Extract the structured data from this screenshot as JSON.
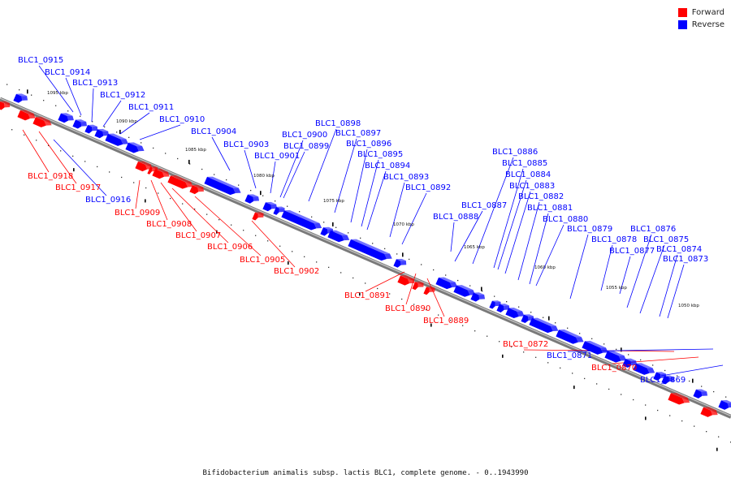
{
  "legend": {
    "forward_label": "Forward",
    "reverse_label": "Reverse",
    "forward_color": "#ff0000",
    "reverse_color": "#0000ff"
  },
  "caption": "Bifidobacterium animalis subsp. lactis BLC1, complete genome. - 0..1943990",
  "scale_labels": [
    "1095 kbp",
    "1090 kbp",
    "1085 kbp",
    "1080 kbp",
    "1075 kbp",
    "1070 kbp",
    "1065 kbp",
    "1060 kbp",
    "1055 kbp",
    "1050 kbp"
  ],
  "genes": [
    {
      "name": "BLC1_0915",
      "strand": "reverse"
    },
    {
      "name": "BLC1_0914",
      "strand": "reverse"
    },
    {
      "name": "BLC1_0913",
      "strand": "reverse"
    },
    {
      "name": "BLC1_0912",
      "strand": "reverse"
    },
    {
      "name": "BLC1_0911",
      "strand": "reverse"
    },
    {
      "name": "BLC1_0910",
      "strand": "reverse"
    },
    {
      "name": "BLC1_0904",
      "strand": "reverse"
    },
    {
      "name": "BLC1_0903",
      "strand": "reverse"
    },
    {
      "name": "BLC1_0901",
      "strand": "reverse"
    },
    {
      "name": "BLC1_0900",
      "strand": "reverse"
    },
    {
      "name": "BLC1_0899",
      "strand": "reverse"
    },
    {
      "name": "BLC1_0898",
      "strand": "reverse"
    },
    {
      "name": "BLC1_0897",
      "strand": "reverse"
    },
    {
      "name": "BLC1_0896",
      "strand": "reverse"
    },
    {
      "name": "BLC1_0895",
      "strand": "reverse"
    },
    {
      "name": "BLC1_0894",
      "strand": "reverse"
    },
    {
      "name": "BLC1_0893",
      "strand": "reverse"
    },
    {
      "name": "BLC1_0892",
      "strand": "reverse"
    },
    {
      "name": "BLC1_0886",
      "strand": "reverse"
    },
    {
      "name": "BLC1_0885",
      "strand": "reverse"
    },
    {
      "name": "BLC1_0884",
      "strand": "reverse"
    },
    {
      "name": "BLC1_0883",
      "strand": "reverse"
    },
    {
      "name": "BLC1_0882",
      "strand": "reverse"
    },
    {
      "name": "BLC1_0881",
      "strand": "reverse"
    },
    {
      "name": "BLC1_0887",
      "strand": "reverse"
    },
    {
      "name": "BLC1_0888",
      "strand": "reverse"
    },
    {
      "name": "BLC1_0880",
      "strand": "reverse"
    },
    {
      "name": "BLC1_0879",
      "strand": "reverse"
    },
    {
      "name": "BLC1_0878",
      "strand": "reverse"
    },
    {
      "name": "BLC1_0877",
      "strand": "reverse"
    },
    {
      "name": "BLC1_0876",
      "strand": "reverse"
    },
    {
      "name": "BLC1_0875",
      "strand": "reverse"
    },
    {
      "name": "BLC1_0874",
      "strand": "reverse"
    },
    {
      "name": "BLC1_0873",
      "strand": "reverse"
    },
    {
      "name": "BLC1_0918",
      "strand": "forward"
    },
    {
      "name": "BLC1_0917",
      "strand": "forward"
    },
    {
      "name": "BLC1_0916",
      "strand": "reverse"
    },
    {
      "name": "BLC1_0909",
      "strand": "forward"
    },
    {
      "name": "BLC1_0908",
      "strand": "forward"
    },
    {
      "name": "BLC1_0907",
      "strand": "forward"
    },
    {
      "name": "BLC1_0906",
      "strand": "forward"
    },
    {
      "name": "BLC1_0905",
      "strand": "forward"
    },
    {
      "name": "BLC1_0902",
      "strand": "forward"
    },
    {
      "name": "BLC1_0891",
      "strand": "forward"
    },
    {
      "name": "BLC1_0890",
      "strand": "forward"
    },
    {
      "name": "BLC1_0889",
      "strand": "forward"
    },
    {
      "name": "BLC1_0872",
      "strand": "forward"
    },
    {
      "name": "BLC1_0871",
      "strand": "reverse"
    },
    {
      "name": "BLC1_0870",
      "strand": "forward"
    },
    {
      "name": "BLC1_0869",
      "strand": "reverse"
    }
  ]
}
